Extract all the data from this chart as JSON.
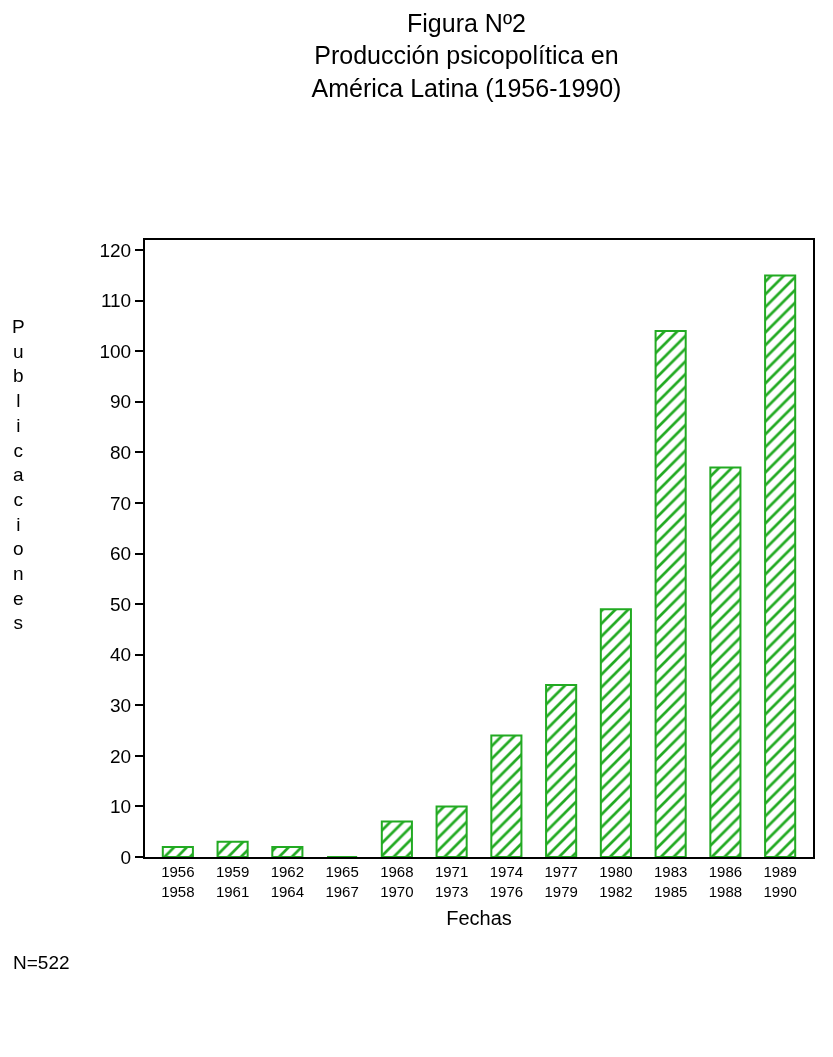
{
  "chart_data": {
    "type": "bar",
    "title": "Figura Nº2\nProducción psicopolítica en\nAmérica Latina (1956-1990)",
    "xlabel": "Fechas",
    "ylabel": "Publicaciones",
    "categories": [
      "1956\n1958",
      "1959\n1961",
      "1962\n1964",
      "1965\n1967",
      "1968\n1970",
      "1971\n1973",
      "1974\n1976",
      "1977\n1979",
      "1980\n1982",
      "1983\n1985",
      "1986\n1988",
      "1989\n1990"
    ],
    "values": [
      2,
      3,
      2,
      0,
      7,
      10,
      24,
      34,
      49,
      104,
      77,
      115
    ],
    "color": "#22aa22",
    "ylim": [
      0,
      122
    ],
    "yticks": [
      0,
      10,
      20,
      30,
      40,
      50,
      60,
      70,
      80,
      90,
      100,
      110,
      120
    ],
    "grid": false,
    "annotations": [
      "N=522"
    ]
  }
}
